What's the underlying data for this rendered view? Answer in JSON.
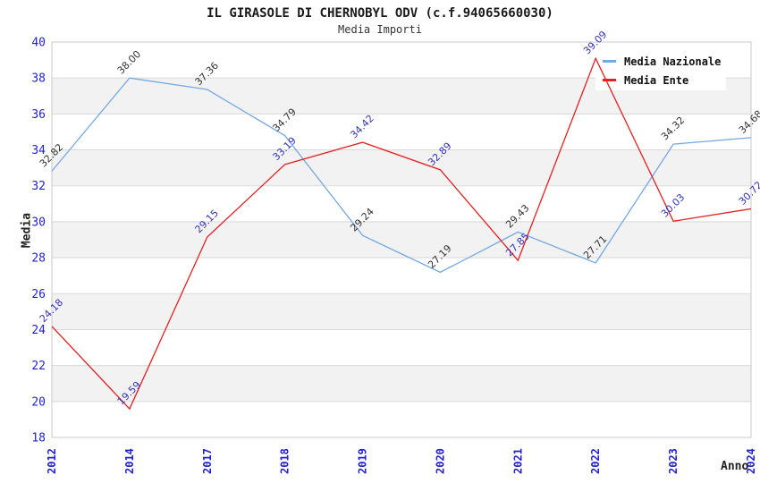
{
  "chart_data": {
    "type": "line",
    "title": "IL GIRASOLE DI CHERNOBYL ODV (c.f.94065660030)",
    "subtitle": "Media Importi",
    "xlabel": "Anno",
    "ylabel": "Media",
    "categories": [
      "2012",
      "2014",
      "2017",
      "2018",
      "2019",
      "2020",
      "2021",
      "2022",
      "2023",
      "2024"
    ],
    "series": [
      {
        "name": "Media Nazionale",
        "color": "#74a9e2",
        "label_color": "#333333",
        "values": [
          32.82,
          38.0,
          37.36,
          34.79,
          29.24,
          27.19,
          29.43,
          27.71,
          34.32,
          34.68
        ]
      },
      {
        "name": "Media Ente",
        "color": "#e62020",
        "label_color": "#3333bb",
        "values": [
          24.18,
          19.59,
          29.15,
          33.19,
          34.42,
          32.89,
          27.85,
          39.09,
          30.03,
          30.72
        ]
      }
    ],
    "ylim": [
      18,
      40
    ],
    "ytick_step": 2,
    "grid": true,
    "banded_background": true,
    "legend_position": "top-right",
    "value_label_decimals": 2,
    "colors": {
      "tick_label": "#2222cc",
      "grid_line": "#d9d9d9",
      "band_fill": "#f2f2f2",
      "frame": "#c8c8c8",
      "legend_background": "#ffffff"
    }
  }
}
